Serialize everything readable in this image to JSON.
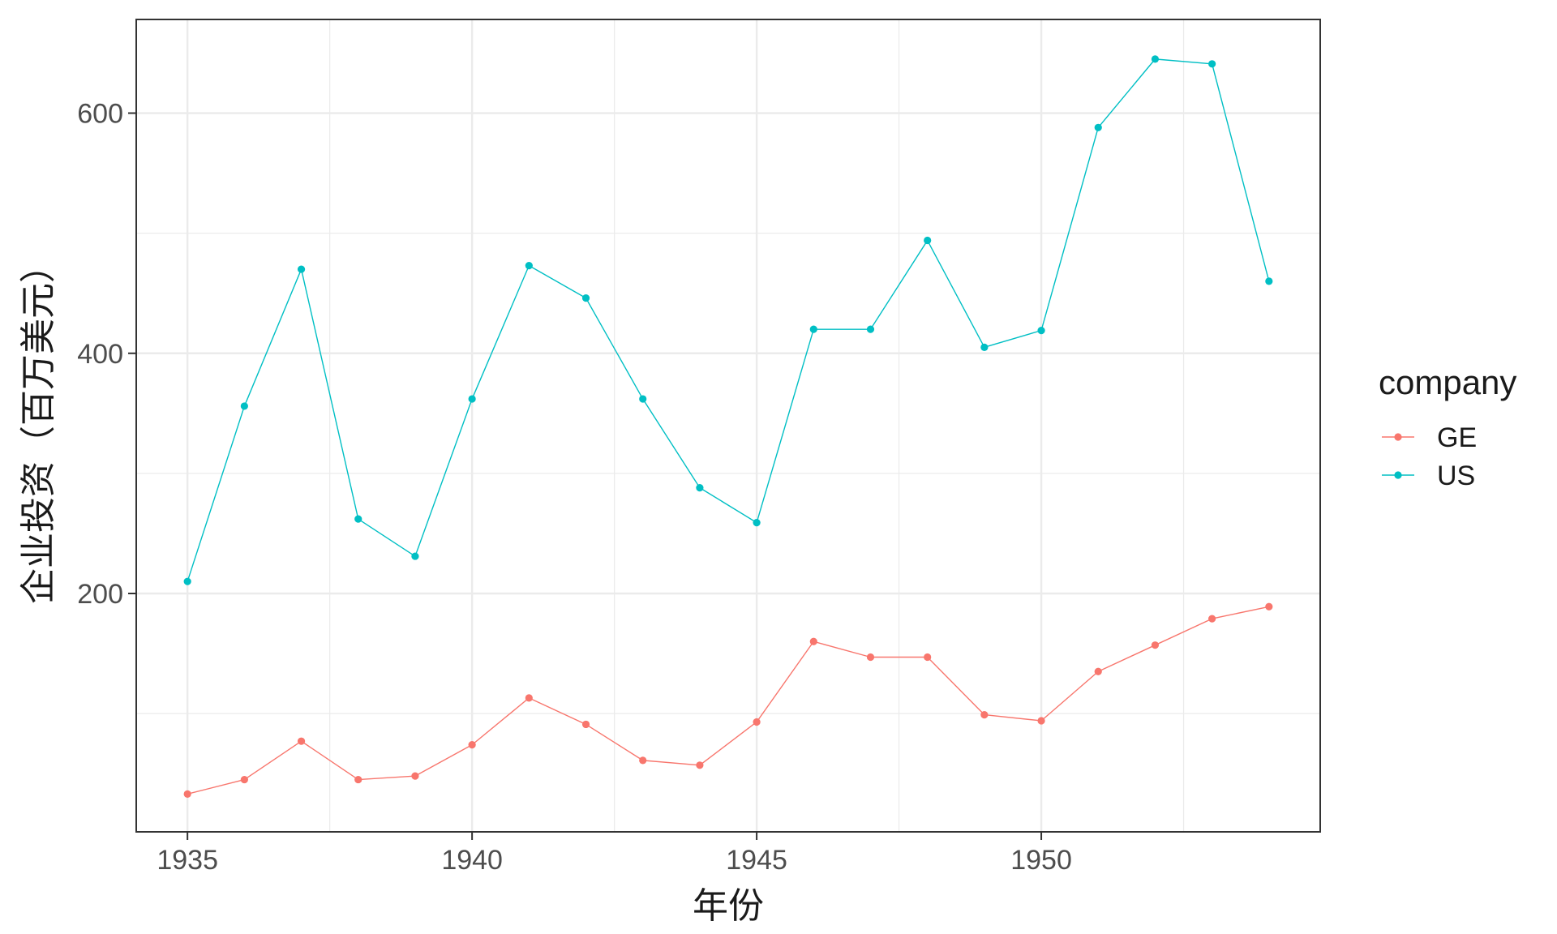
{
  "chart_data": {
    "type": "line",
    "xlabel": "年份",
    "ylabel": "企业投资（百万美元）",
    "xlim": [
      1934.1,
      1954.9
    ],
    "ylim": [
      1.5,
      678
    ],
    "x_ticks": [
      1935,
      1940,
      1945,
      1950
    ],
    "y_ticks": [
      200,
      400,
      600
    ],
    "grid": true,
    "legend": {
      "title": "company",
      "placement": "right"
    },
    "x": [
      1935,
      1936,
      1937,
      1938,
      1939,
      1940,
      1941,
      1942,
      1943,
      1944,
      1945,
      1946,
      1947,
      1948,
      1949,
      1950,
      1951,
      1952,
      1953,
      1954
    ],
    "series": [
      {
        "name": "GE",
        "color": "#F8766D",
        "values": [
          33,
          45,
          77,
          45,
          48,
          74,
          113,
          91,
          61,
          57,
          93,
          160,
          147,
          147,
          99,
          94,
          135,
          157,
          179,
          189
        ]
      },
      {
        "name": "US",
        "color": "#00BFC4",
        "values": [
          210,
          356,
          470,
          262,
          231,
          362,
          473,
          446,
          362,
          288,
          259,
          420,
          420,
          494,
          405,
          419,
          588,
          645,
          641,
          460
        ]
      }
    ]
  }
}
